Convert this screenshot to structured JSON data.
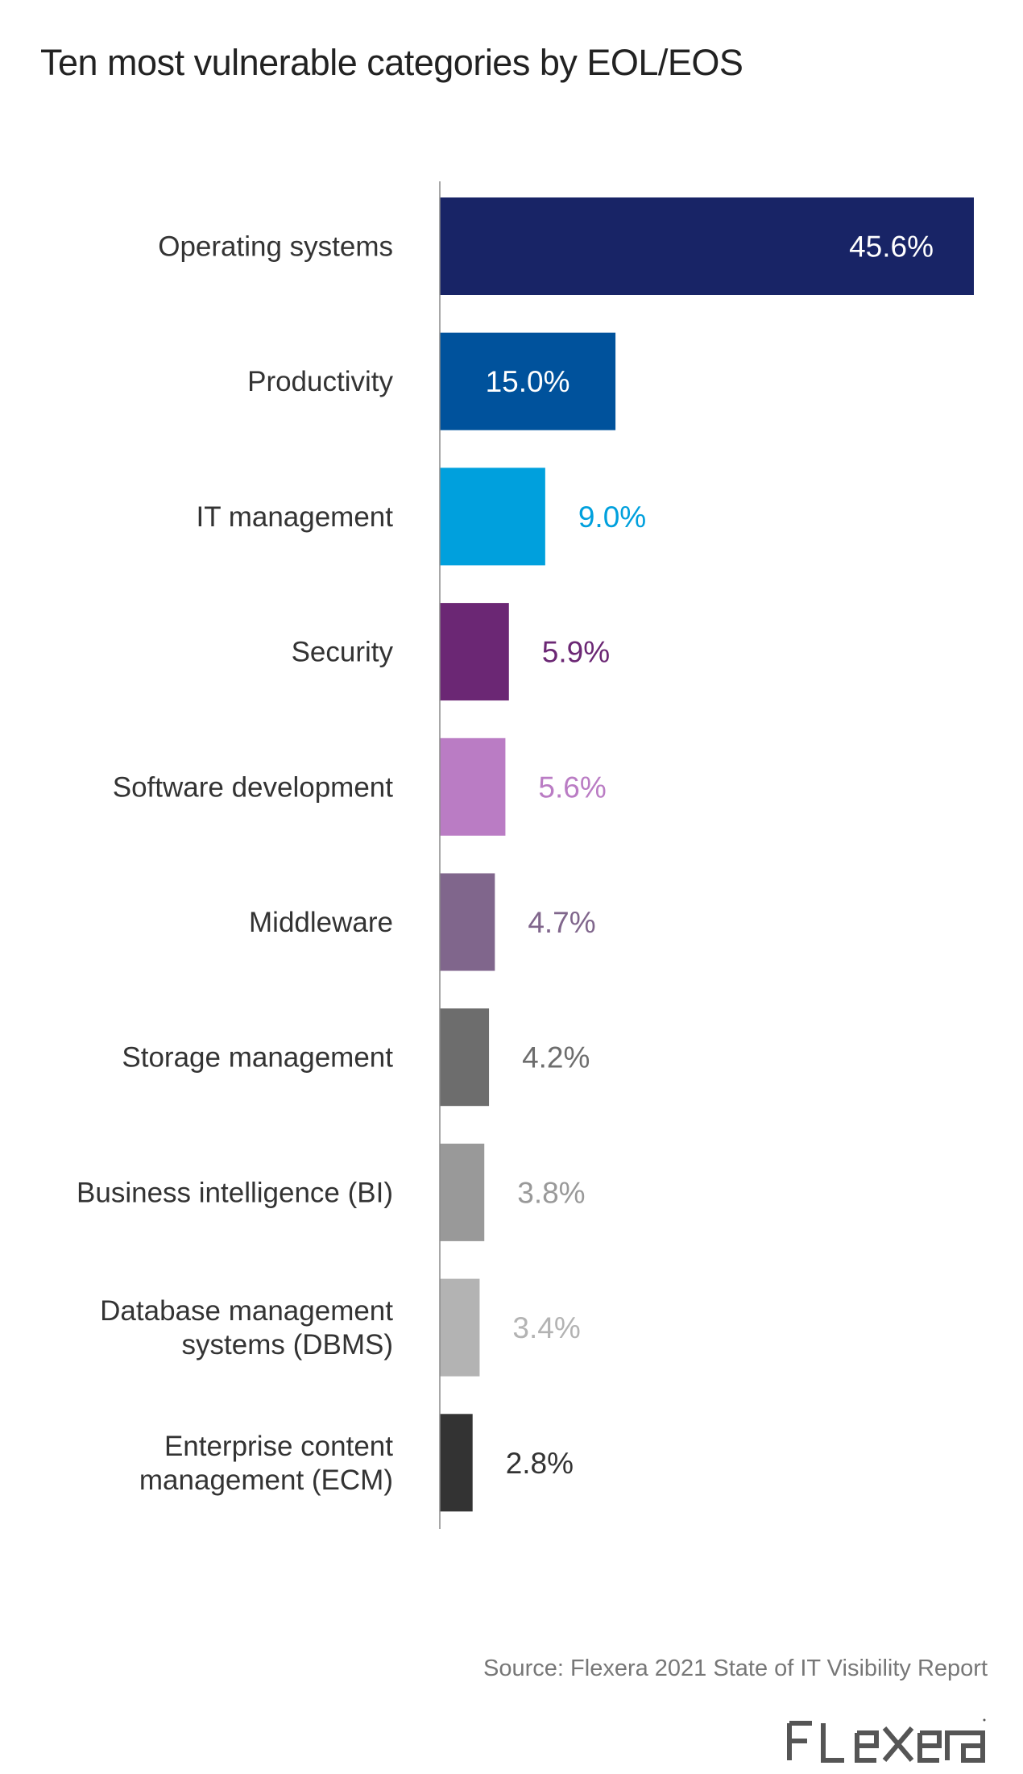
{
  "header": {
    "title": "Ten most vulnerable categories by EOL/EOS"
  },
  "chart_data": {
    "type": "bar",
    "orientation": "horizontal",
    "title": "Ten most vulnerable categories by EOL/EOS",
    "xlabel": "",
    "ylabel": "",
    "xlim": [
      0,
      45.6
    ],
    "grid": false,
    "legend": "none",
    "categories": [
      "Operating systems",
      "Productivity",
      "IT management",
      "Security",
      "Software development",
      "Middleware",
      "Storage management",
      "Business intelligence (BI)",
      "Database management systems (DBMS)",
      "Enterprise content management (ECM)"
    ],
    "category_lines": [
      [
        "Operating systems"
      ],
      [
        "Productivity"
      ],
      [
        "IT management"
      ],
      [
        "Security"
      ],
      [
        "Software development"
      ],
      [
        "Middleware"
      ],
      [
        "Storage management"
      ],
      [
        "Business intelligence (BI)"
      ],
      [
        "Database management",
        "systems (DBMS)"
      ],
      [
        "Enterprise content",
        "management (ECM)"
      ]
    ],
    "values": [
      45.6,
      15.0,
      9.0,
      5.9,
      5.6,
      4.7,
      4.2,
      3.8,
      3.4,
      2.8
    ],
    "value_labels": [
      "45.6%",
      "15.0%",
      "9.0%",
      "5.9%",
      "5.6%",
      "4.7%",
      "4.2%",
      "3.8%",
      "3.4%",
      "2.8%"
    ],
    "value_label_inside": [
      true,
      true,
      false,
      false,
      false,
      false,
      false,
      false,
      false,
      false
    ],
    "colors": [
      "#182466",
      "#00529C",
      "#00A0DD",
      "#6B2774",
      "#BA7CC4",
      "#80668C",
      "#6D6D6D",
      "#999999",
      "#B3B3B3",
      "#333333"
    ],
    "label_colors": [
      "#FFFFFF",
      "#FFFFFF",
      "#00A0DD",
      "#6B2774",
      "#BA7CC4",
      "#80668C",
      "#6D6D6D",
      "#999999",
      "#B3B3B3",
      "#333333"
    ]
  },
  "footer": {
    "source": "Source: Flexera 2021 State of IT Visibility Report",
    "logo_text": "flexera",
    "logo_color": "#555555"
  }
}
